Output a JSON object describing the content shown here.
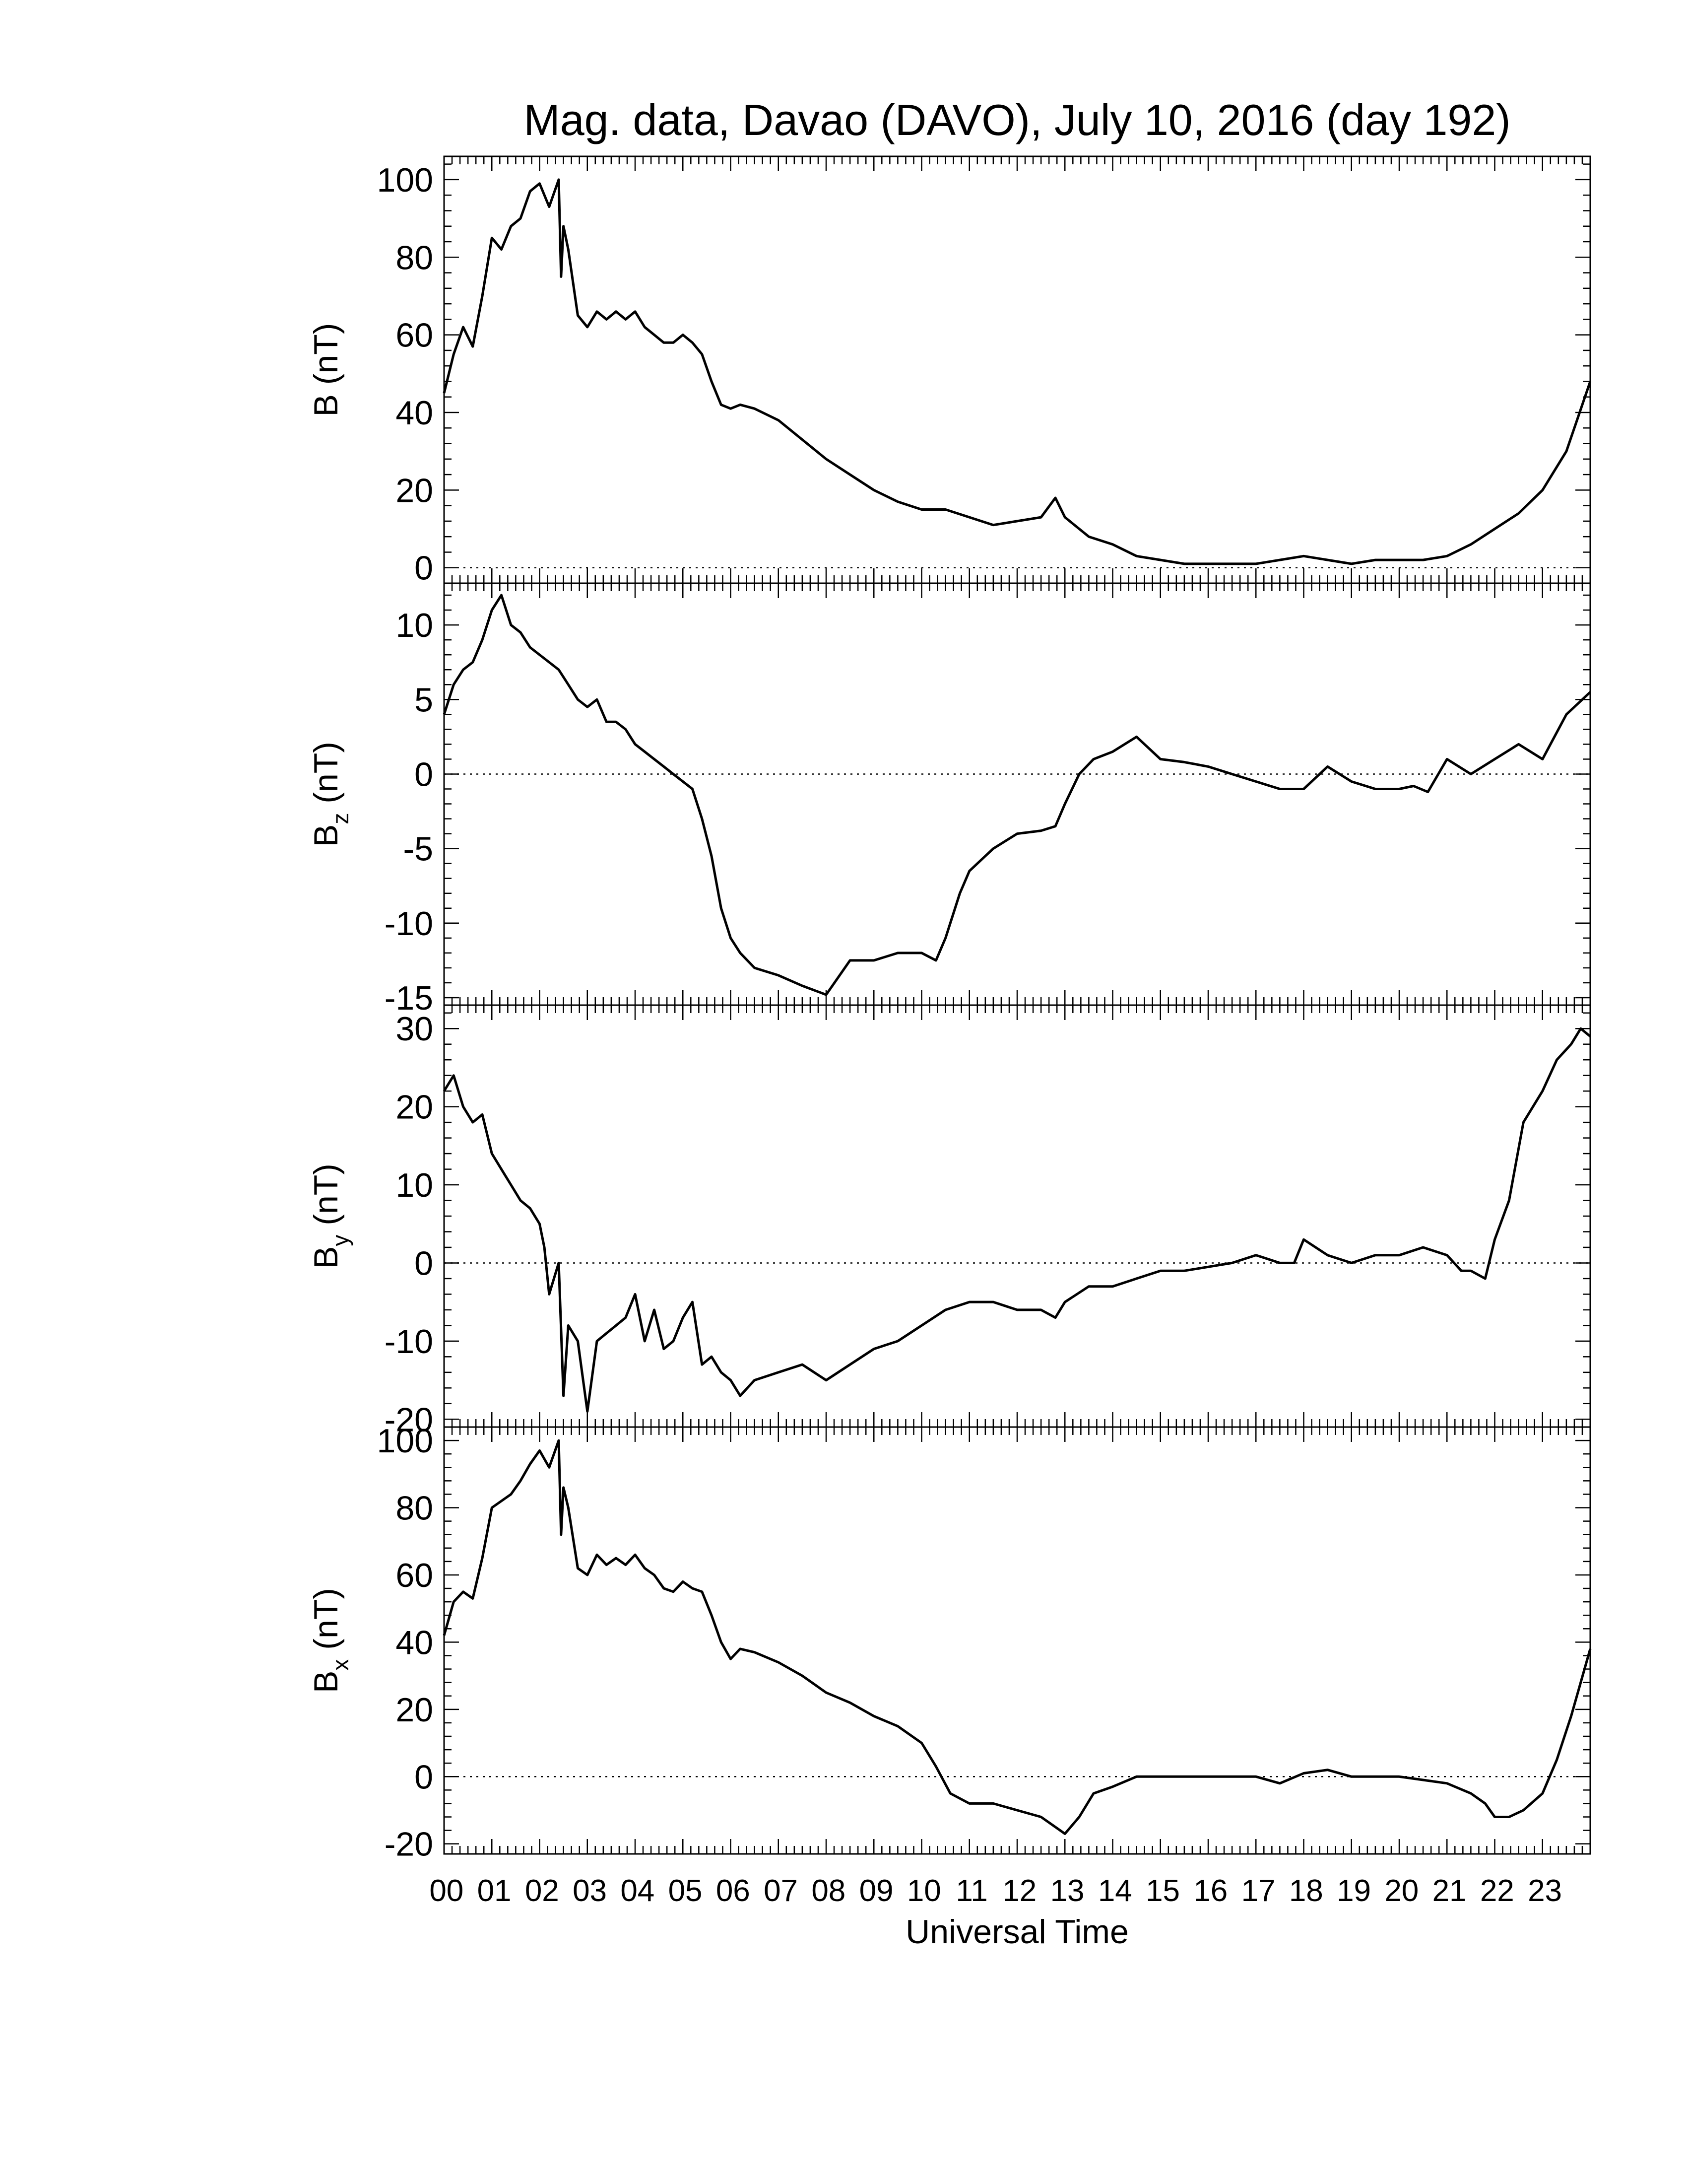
{
  "chart_data": {
    "type": "line",
    "title": "Mag. data, Davao (DAVO), July 10, 2016 (day 192)",
    "xlabel": "Universal Time",
    "x_unit": "hours UT",
    "xlim": [
      0,
      24
    ],
    "x_tick_labels": [
      "00",
      "01",
      "02",
      "03",
      "04",
      "05",
      "06",
      "07",
      "08",
      "09",
      "10",
      "11",
      "12",
      "13",
      "14",
      "15",
      "16",
      "17",
      "18",
      "19",
      "20",
      "21",
      "22",
      "23"
    ],
    "reference_line": 0,
    "panels": [
      {
        "id": "B",
        "ylabel_main": "B",
        "ylabel_sub": "",
        "ylabel_unit": " (nT)",
        "ylim": [
          -4,
          106
        ],
        "yticks": [
          0,
          20,
          40,
          60,
          80,
          100
        ],
        "series": [
          {
            "x": [
              0.0,
              0.2,
              0.4,
              0.6,
              0.8,
              1.0,
              1.2,
              1.4,
              1.6,
              1.8,
              2.0,
              2.2,
              2.4,
              2.45,
              2.5,
              2.6,
              2.8,
              3.0,
              3.2,
              3.4,
              3.6,
              3.8,
              4.0,
              4.2,
              4.4,
              4.6,
              4.8,
              5.0,
              5.2,
              5.4,
              5.6,
              5.8,
              6.0,
              6.2,
              6.5,
              7.0,
              7.5,
              8.0,
              8.5,
              9.0,
              9.5,
              10.0,
              10.5,
              11.0,
              11.5,
              12.0,
              12.5,
              12.8,
              13.0,
              13.5,
              14.0,
              14.5,
              15.0,
              15.5,
              16.0,
              16.5,
              17.0,
              17.5,
              18.0,
              18.5,
              19.0,
              19.5,
              20.0,
              20.5,
              21.0,
              21.5,
              22.0,
              22.5,
              23.0,
              23.5,
              24.0
            ],
            "values": [
              45,
              55,
              62,
              57,
              70,
              85,
              82,
              88,
              90,
              97,
              99,
              93,
              100,
              75,
              88,
              82,
              65,
              62,
              66,
              64,
              66,
              64,
              66,
              62,
              60,
              58,
              58,
              60,
              58,
              55,
              48,
              42,
              41,
              42,
              41,
              38,
              33,
              28,
              24,
              20,
              17,
              15,
              15,
              13,
              11,
              12,
              13,
              18,
              13,
              8,
              6,
              3,
              2,
              1,
              1,
              1,
              1,
              2,
              3,
              2,
              1,
              2,
              2,
              2,
              3,
              6,
              10,
              14,
              20,
              30,
              48
            ]
          }
        ]
      },
      {
        "id": "Bz",
        "ylabel_main": "B",
        "ylabel_sub": "z",
        "ylabel_unit": " (nT)",
        "ylim": [
          -15.5,
          12.8
        ],
        "yticks": [
          -15,
          -10,
          -5,
          0,
          5,
          10
        ],
        "series": [
          {
            "x": [
              0.0,
              0.2,
              0.4,
              0.6,
              0.8,
              1.0,
              1.2,
              1.4,
              1.6,
              1.8,
              2.0,
              2.2,
              2.4,
              2.6,
              2.8,
              3.0,
              3.2,
              3.4,
              3.6,
              3.8,
              4.0,
              4.2,
              4.4,
              4.6,
              4.8,
              5.0,
              5.2,
              5.4,
              5.6,
              5.8,
              6.0,
              6.2,
              6.5,
              7.0,
              7.5,
              8.0,
              8.5,
              9.0,
              9.5,
              10.0,
              10.3,
              10.5,
              10.8,
              11.0,
              11.5,
              12.0,
              12.5,
              12.8,
              13.0,
              13.3,
              13.6,
              14.0,
              14.5,
              15.0,
              15.5,
              16.0,
              16.5,
              17.0,
              17.5,
              18.0,
              18.5,
              19.0,
              19.5,
              20.0,
              20.3,
              20.6,
              21.0,
              21.5,
              22.0,
              22.5,
              23.0,
              23.5,
              24.0
            ],
            "values": [
              4,
              6,
              7,
              7.5,
              9,
              11,
              12,
              10,
              9.5,
              8.5,
              8,
              7.5,
              7,
              6,
              5,
              4.5,
              5,
              3.5,
              3.5,
              3,
              2,
              1.5,
              1,
              0.5,
              0,
              -0.5,
              -1,
              -3,
              -5.5,
              -9,
              -11,
              -12,
              -13,
              -13.5,
              -14.2,
              -14.8,
              -12.5,
              -12.5,
              -12,
              -12,
              -12.5,
              -11,
              -8,
              -6.5,
              -5,
              -4,
              -3.8,
              -3.5,
              -2,
              0,
              1,
              1.5,
              2.5,
              1,
              0.8,
              0.5,
              0,
              -0.5,
              -1,
              -1,
              0.5,
              -0.5,
              -1,
              -1,
              -0.8,
              -1.2,
              1,
              0,
              1,
              2,
              1,
              4,
              5.5
            ]
          }
        ]
      },
      {
        "id": "By",
        "ylabel_main": "B",
        "ylabel_sub": "y",
        "ylabel_unit": " (nT)",
        "ylim": [
          -21,
          33
        ],
        "yticks": [
          -20,
          -10,
          0,
          10,
          20,
          30
        ],
        "series": [
          {
            "x": [
              0.0,
              0.2,
              0.4,
              0.6,
              0.8,
              1.0,
              1.2,
              1.4,
              1.6,
              1.8,
              2.0,
              2.1,
              2.2,
              2.4,
              2.5,
              2.6,
              2.8,
              3.0,
              3.2,
              3.4,
              3.6,
              3.8,
              4.0,
              4.2,
              4.4,
              4.6,
              4.8,
              5.0,
              5.2,
              5.4,
              5.6,
              5.8,
              6.0,
              6.2,
              6.5,
              7.0,
              7.5,
              8.0,
              8.5,
              9.0,
              9.5,
              10.0,
              10.5,
              11.0,
              11.5,
              12.0,
              12.5,
              12.8,
              13.0,
              13.5,
              14.0,
              14.5,
              15.0,
              15.5,
              16.0,
              16.5,
              17.0,
              17.5,
              17.8,
              18.0,
              18.5,
              19.0,
              19.5,
              20.0,
              20.5,
              21.0,
              21.3,
              21.5,
              21.8,
              22.0,
              22.3,
              22.6,
              23.0,
              23.3,
              23.6,
              23.8,
              24.0
            ],
            "values": [
              22,
              24,
              20,
              18,
              19,
              14,
              12,
              10,
              8,
              7,
              5,
              2,
              -4,
              0,
              -17,
              -8,
              -10,
              -19,
              -10,
              -9,
              -8,
              -7,
              -4,
              -10,
              -6,
              -11,
              -10,
              -7,
              -5,
              -13,
              -12,
              -14,
              -15,
              -17,
              -15,
              -14,
              -13,
              -15,
              -13,
              -11,
              -10,
              -8,
              -6,
              -5,
              -5,
              -6,
              -6,
              -7,
              -5,
              -3,
              -3,
              -2,
              -1,
              -1,
              -0.5,
              0,
              1,
              0,
              0,
              3,
              1,
              0,
              1,
              1,
              2,
              1,
              -1,
              -1,
              -2,
              3,
              8,
              18,
              22,
              26,
              28,
              30,
              29
            ]
          }
        ]
      },
      {
        "id": "Bx",
        "ylabel_main": "B",
        "ylabel_sub": "x",
        "ylabel_unit": " (nT)",
        "ylim": [
          -23,
          104
        ],
        "yticks": [
          -20,
          0,
          20,
          40,
          60,
          80,
          100
        ],
        "series": [
          {
            "x": [
              0.0,
              0.2,
              0.4,
              0.6,
              0.8,
              1.0,
              1.2,
              1.4,
              1.6,
              1.8,
              2.0,
              2.2,
              2.4,
              2.45,
              2.5,
              2.6,
              2.8,
              3.0,
              3.2,
              3.4,
              3.6,
              3.8,
              4.0,
              4.2,
              4.4,
              4.6,
              4.8,
              5.0,
              5.2,
              5.4,
              5.6,
              5.8,
              6.0,
              6.2,
              6.5,
              7.0,
              7.5,
              8.0,
              8.5,
              9.0,
              9.5,
              10.0,
              10.3,
              10.6,
              11.0,
              11.5,
              12.0,
              12.5,
              12.8,
              13.0,
              13.3,
              13.6,
              14.0,
              14.5,
              15.0,
              15.5,
              16.0,
              16.5,
              17.0,
              17.5,
              18.0,
              18.5,
              19.0,
              19.5,
              20.0,
              20.5,
              21.0,
              21.5,
              21.8,
              22.0,
              22.3,
              22.6,
              23.0,
              23.3,
              23.6,
              24.0
            ],
            "values": [
              42,
              52,
              55,
              53,
              65,
              80,
              82,
              84,
              88,
              93,
              97,
              92,
              100,
              72,
              86,
              80,
              62,
              60,
              66,
              63,
              65,
              63,
              66,
              62,
              60,
              56,
              55,
              58,
              56,
              55,
              48,
              40,
              35,
              38,
              37,
              34,
              30,
              25,
              22,
              18,
              15,
              10,
              3,
              -5,
              -8,
              -8,
              -10,
              -12,
              -15,
              -17,
              -12,
              -5,
              -3,
              0,
              0,
              0,
              0,
              0,
              0,
              -2,
              1,
              2,
              0,
              0,
              0,
              -1,
              -2,
              -5,
              -8,
              -12,
              -12,
              -10,
              -5,
              5,
              18,
              38
            ]
          }
        ]
      }
    ]
  }
}
